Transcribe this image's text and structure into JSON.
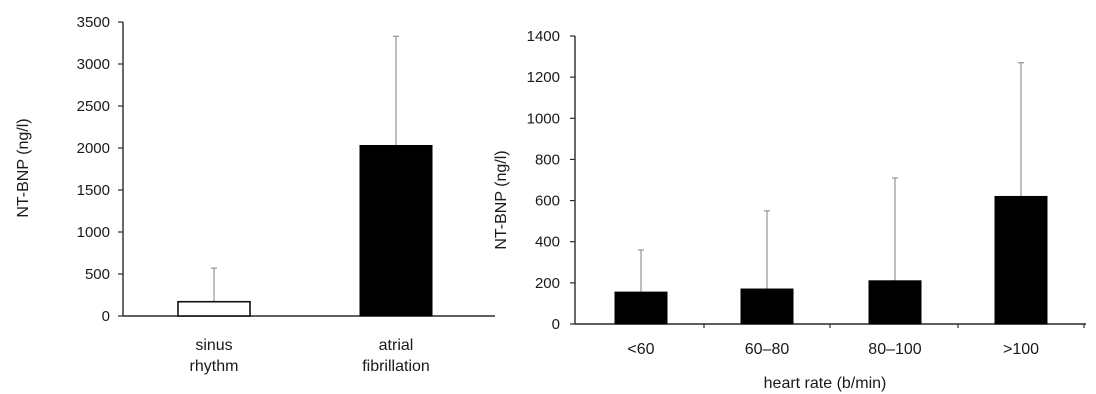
{
  "chart_data": [
    {
      "type": "bar",
      "categories": [
        [
          "sinus",
          "rhythm"
        ],
        [
          "atrial",
          "fibrillation"
        ]
      ],
      "values": [
        170,
        2030
      ],
      "error_upper": [
        570,
        3330
      ],
      "bar_colors": [
        "#ffffff",
        "#000000"
      ],
      "xlabel": "",
      "ylabel": "NT-BNP (ng/l)",
      "ylim": [
        0,
        3500
      ],
      "yticks": [
        "0",
        "500",
        "1000",
        "1500",
        "2000",
        "2500",
        "3000",
        "3500"
      ],
      "grid": false
    },
    {
      "type": "bar",
      "categories": [
        [
          "<60"
        ],
        [
          "60–80"
        ],
        [
          "80–100"
        ],
        [
          ">100"
        ]
      ],
      "values": [
        155,
        170,
        210,
        620
      ],
      "error_upper": [
        360,
        550,
        710,
        1270
      ],
      "bar_colors": [
        "#000000",
        "#000000",
        "#000000",
        "#000000"
      ],
      "xlabel": "heart rate (b/min)",
      "ylabel": "NT-BNP (ng/l)",
      "ylim": [
        0,
        1400
      ],
      "yticks": [
        "0",
        "200",
        "400",
        "600",
        "800",
        "1000",
        "1200",
        "1400"
      ],
      "grid": false
    }
  ]
}
